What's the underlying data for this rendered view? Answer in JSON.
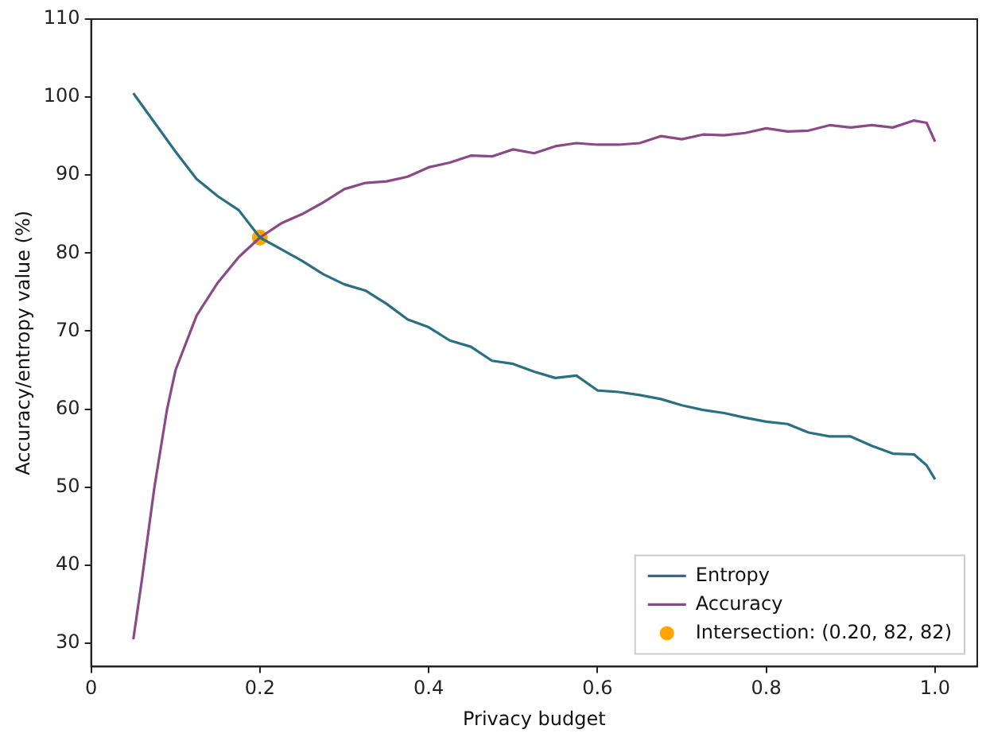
{
  "chart_data": {
    "type": "line",
    "xlabel": "Privacy budget",
    "ylabel": "Accuracy/entropy value (%)",
    "xlim": [
      0,
      1.05
    ],
    "xticks": [
      0,
      0.2,
      0.4,
      0.6,
      0.8,
      {
        "value": 1,
        "label": "1.0"
      }
    ],
    "ylim": [
      27,
      110
    ],
    "yticks": [
      30,
      40,
      50,
      60,
      70,
      80,
      90,
      100,
      110
    ],
    "grid": false,
    "legend": "bottom right",
    "marker": "none",
    "line_style": "solid",
    "series": [
      {
        "name": "Entropy",
        "color": "#2b6f82",
        "x": [
          0.05,
          0.1,
          0.125,
          0.15,
          0.175,
          0.2,
          0.225,
          0.25,
          0.275,
          0.3,
          0.325,
          0.35,
          0.375,
          0.4,
          0.425,
          0.45,
          0.475,
          0.5,
          0.525,
          0.55,
          0.575,
          0.6,
          0.625,
          0.65,
          0.675,
          0.7,
          0.725,
          0.75,
          0.775,
          0.8,
          0.825,
          0.85,
          0.875,
          0.9,
          0.925,
          0.95,
          0.975,
          0.99,
          1.0
        ],
        "values": [
          100.5,
          93,
          89.5,
          87.3,
          85.5,
          82,
          80.5,
          79,
          77.3,
          76,
          75.2,
          73.5,
          71.5,
          70.5,
          68.8,
          68,
          66.2,
          65.8,
          64.8,
          64,
          64.3,
          62.4,
          62.2,
          61.8,
          61.3,
          60.5,
          59.9,
          59.5,
          58.9,
          58.4,
          58.1,
          57,
          56.5,
          56.5,
          55.3,
          54.3,
          54.2,
          52.8,
          51
        ]
      },
      {
        "name": "Accuracy",
        "color": "#8b4a87",
        "x": [
          0.05,
          0.06,
          0.075,
          0.09,
          0.1,
          0.125,
          0.15,
          0.175,
          0.2,
          0.225,
          0.25,
          0.275,
          0.3,
          0.325,
          0.35,
          0.375,
          0.4,
          0.425,
          0.45,
          0.475,
          0.5,
          0.525,
          0.55,
          0.575,
          0.6,
          0.625,
          0.65,
          0.675,
          0.7,
          0.725,
          0.75,
          0.775,
          0.8,
          0.825,
          0.85,
          0.875,
          0.9,
          0.925,
          0.95,
          0.975,
          0.99,
          1.0
        ],
        "values": [
          30.5,
          38,
          50,
          60,
          65,
          72,
          76.2,
          79.5,
          82,
          83.8,
          85,
          86.5,
          88.2,
          89,
          89.2,
          89.8,
          91,
          91.6,
          92.5,
          92.4,
          93.3,
          92.8,
          93.7,
          94.1,
          93.9,
          93.9,
          94.1,
          95,
          94.6,
          95.2,
          95.1,
          95.4,
          96,
          95.6,
          95.7,
          96.4,
          96.1,
          96.4,
          96.1,
          97,
          96.7,
          94.3
        ]
      },
      {
        "name": "Intersection: (0.20, 82, 82)",
        "type": "scatter",
        "marker": "circle",
        "color": "#ffa500",
        "x": [
          0.2
        ],
        "values": [
          82
        ]
      }
    ]
  }
}
